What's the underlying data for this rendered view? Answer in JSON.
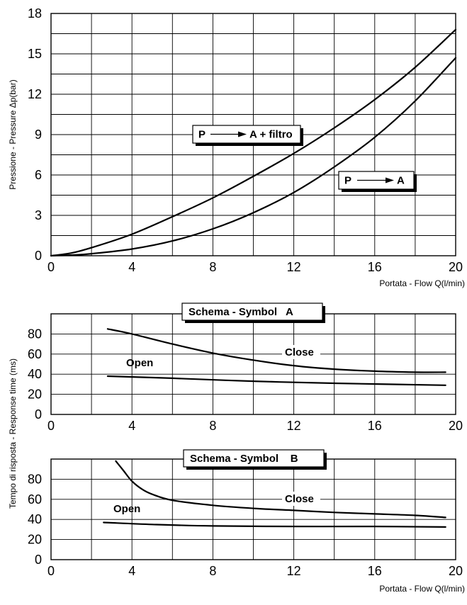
{
  "chart_data": [
    {
      "type": "line",
      "xlabel": "Portata - Flow Q(l/min)",
      "ylabel": "Pressione - Pressure Δp(bar)",
      "xlim": [
        0,
        20
      ],
      "ylim": [
        0,
        18
      ],
      "xticks": [
        "0",
        "4",
        "8",
        "12",
        "16",
        "20"
      ],
      "yticks": [
        "0",
        "3",
        "6",
        "9",
        "12",
        "15",
        "18"
      ],
      "grid": true,
      "series": [
        {
          "name": "P ⟶ A + filtro",
          "x": [
            0,
            1,
            2,
            4,
            6,
            8,
            10,
            12,
            14,
            16,
            18,
            20
          ],
          "y": [
            0,
            0.2,
            0.6,
            1.6,
            2.9,
            4.3,
            5.9,
            7.6,
            9.5,
            11.6,
            14.0,
            16.8
          ]
        },
        {
          "name": "P ⟶ A",
          "x": [
            0,
            1,
            2,
            4,
            6,
            8,
            10,
            12,
            14,
            16,
            18,
            20
          ],
          "y": [
            0,
            0.05,
            0.15,
            0.5,
            1.1,
            2.0,
            3.2,
            4.7,
            6.6,
            8.8,
            11.5,
            14.7
          ]
        }
      ]
    },
    {
      "type": "line",
      "title": "Schema - Symbol   A",
      "xlabel": "",
      "ylabel": "Tempo di risposta - Response time   (ms)",
      "xlim": [
        0,
        20
      ],
      "ylim": [
        0,
        100
      ],
      "xticks": [
        "0",
        "4",
        "8",
        "12",
        "16",
        "20"
      ],
      "yticks": [
        "0",
        "20",
        "40",
        "60",
        "80"
      ],
      "grid": true,
      "series": [
        {
          "name": "Close",
          "x": [
            2.8,
            4,
            6,
            8,
            10,
            12,
            14,
            16,
            18,
            19.5
          ],
          "y": [
            85,
            80,
            70,
            61,
            54,
            48.5,
            45,
            43,
            42,
            42
          ]
        },
        {
          "name": "Open",
          "x": [
            2.8,
            6,
            10,
            14,
            19.5
          ],
          "y": [
            38,
            36,
            33,
            31,
            29
          ]
        }
      ]
    },
    {
      "type": "line",
      "title": "Schema - Symbol    B",
      "xlabel": "Portata - Flow Q(l/min)",
      "ylabel": "",
      "xlim": [
        0,
        20
      ],
      "ylim": [
        0,
        100
      ],
      "xticks": [
        "0",
        "4",
        "8",
        "12",
        "16",
        "20"
      ],
      "yticks": [
        "0",
        "20",
        "40",
        "60",
        "80"
      ],
      "grid": true,
      "series": [
        {
          "name": "Close",
          "x": [
            3.2,
            3.6,
            4,
            4.5,
            5,
            6,
            8,
            10,
            12,
            14,
            16,
            18,
            19.5
          ],
          "y": [
            98,
            88,
            78,
            70,
            65,
            59,
            54,
            51,
            49,
            47,
            45.5,
            44,
            42
          ]
        },
        {
          "name": "Open",
          "x": [
            2.6,
            5,
            8,
            12,
            16,
            19.5
          ],
          "y": [
            37,
            35,
            33.5,
            33,
            33,
            32.5
          ]
        }
      ]
    }
  ]
}
